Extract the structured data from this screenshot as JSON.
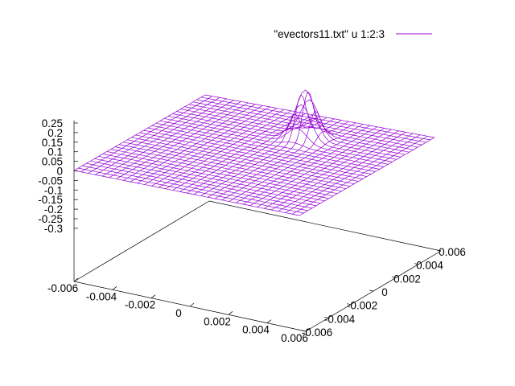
{
  "chart_data": {
    "type": "surface",
    "legend": {
      "label": "\"evectors11.txt\" u 1:2:3",
      "color": "#9400d3",
      "position": "top-right"
    },
    "surface_color": "#9400d3",
    "x_ticks": [
      "-0.006",
      "-0.004",
      "-0.002",
      "0",
      "0.002",
      "0.004",
      "0.006"
    ],
    "y_ticks": [
      "-0.006",
      "-0.004",
      "-0.002",
      "0",
      "0.002",
      "0.004",
      "0.006"
    ],
    "z_ticks": [
      "0.25",
      "0.2",
      "0.15",
      "0.1",
      "0.05",
      "0",
      "-0.05",
      "-0.1",
      "-0.15",
      "-0.2",
      "-0.25",
      "-0.3"
    ],
    "xlim": [
      -0.006,
      0.006
    ],
    "ylim": [
      -0.006,
      0.006
    ],
    "zlim": [
      -0.3,
      0.25
    ],
    "peak": {
      "x": 0.001,
      "y": 0.003,
      "height": 0.25,
      "width": 0.0007
    },
    "grid_lines_per_axis": 33
  }
}
